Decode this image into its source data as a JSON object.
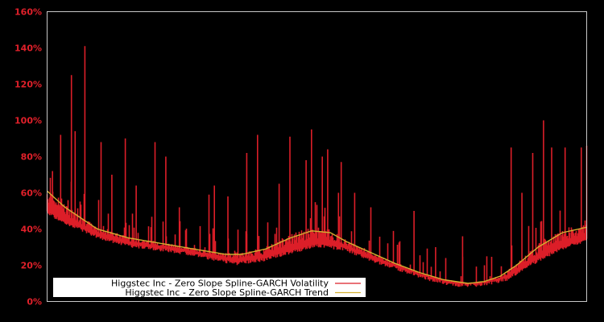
{
  "chart_data": {
    "type": "line",
    "title": "",
    "xlabel": "",
    "ylabel": "",
    "ylim": [
      0,
      160
    ],
    "y_ticks": [
      "0%",
      "20%",
      "40%",
      "60%",
      "80%",
      "100%",
      "120%",
      "140%",
      "160%"
    ],
    "x_ticks": [],
    "grid": false,
    "legend_position": "lower-left",
    "background": "#000000",
    "axis_color": "#c8c8c8",
    "tick_label_color": "#e0202a",
    "series": [
      {
        "name": "Higgstec Inc - Zero Slope Spline-GARCH Volatility",
        "color": "#dc1e28",
        "baseline_x": [
          0,
          0.03,
          0.1,
          0.15,
          0.2,
          0.25,
          0.3,
          0.35,
          0.4,
          0.45,
          0.5,
          0.55,
          0.6,
          0.65,
          0.7,
          0.75,
          0.8,
          0.85,
          0.9,
          0.95,
          1.0
        ],
        "baseline_values": [
          50,
          45,
          36,
          32,
          30,
          28,
          25,
          22,
          24,
          28,
          32,
          30,
          24,
          19,
          14,
          10,
          10,
          13,
          22,
          30,
          35
        ],
        "spikes_x": [
          0.01,
          0.025,
          0.045,
          0.052,
          0.07,
          0.1,
          0.12,
          0.145,
          0.165,
          0.2,
          0.22,
          0.245,
          0.3,
          0.31,
          0.335,
          0.37,
          0.39,
          0.43,
          0.45,
          0.48,
          0.49,
          0.51,
          0.52,
          0.54,
          0.545,
          0.57,
          0.6,
          0.68,
          0.72,
          0.77,
          0.86,
          0.88,
          0.9,
          0.92,
          0.935,
          0.96,
          0.99,
          1.0
        ],
        "spikes_values": [
          72,
          92,
          125,
          94,
          141,
          88,
          70,
          90,
          64,
          88,
          80,
          52,
          59,
          64,
          58,
          82,
          92,
          65,
          91,
          78,
          95,
          80,
          84,
          60,
          77,
          60,
          52,
          50,
          30,
          36,
          85,
          60,
          82,
          100,
          85,
          85,
          85,
          86
        ]
      },
      {
        "name": "Higgstec Inc - Zero Slope Spline-GARCH Trend",
        "color": "#d4b030",
        "x": [
          0,
          0.033,
          0.093,
          0.152,
          0.212,
          0.271,
          0.331,
          0.361,
          0.405,
          0.45,
          0.49,
          0.525,
          0.555,
          0.6,
          0.645,
          0.69,
          0.735,
          0.78,
          0.81,
          0.84,
          0.87,
          0.91,
          0.955,
          1.0
        ],
        "values": [
          61,
          52,
          40,
          35,
          32,
          29,
          26,
          26,
          29,
          35,
          39,
          38,
          33,
          27,
          21,
          16,
          12,
          10,
          11,
          14,
          20,
          30,
          38,
          41
        ]
      }
    ]
  },
  "legend": {
    "items": [
      {
        "label": "Higgstec Inc - Zero Slope Spline-GARCH Volatility",
        "color": "#dc1e28"
      },
      {
        "label": "Higgstec Inc - Zero Slope Spline-GARCH Trend",
        "color": "#d4b030"
      }
    ]
  }
}
